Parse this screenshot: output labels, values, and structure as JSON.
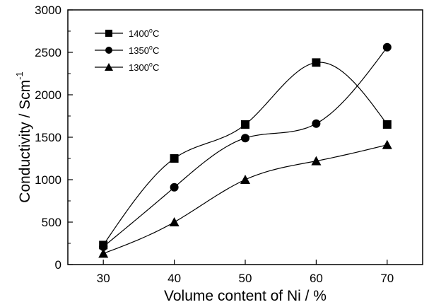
{
  "chart_data": {
    "type": "scatter",
    "xlabel": "Volume content of Ni / %",
    "ylabel": {
      "main": "Conductivity / Scm",
      "sup": "-1"
    },
    "xlim": [
      25,
      75
    ],
    "ylim": [
      0,
      3000
    ],
    "xticks": [
      30,
      40,
      50,
      60,
      70
    ],
    "yticks": [
      0,
      500,
      1000,
      1500,
      2000,
      2500,
      3000
    ],
    "grid": false,
    "legend_position": "top-left",
    "series": [
      {
        "name": {
          "main": "1400",
          "sup": "o",
          "unit": "C"
        },
        "marker": "square",
        "x": [
          30,
          40,
          50,
          60,
          70
        ],
        "y": [
          230,
          1250,
          1650,
          2380,
          1650
        ]
      },
      {
        "name": {
          "main": "1350",
          "sup": "o",
          "unit": "C"
        },
        "marker": "circle",
        "x": [
          30,
          40,
          50,
          60,
          70
        ],
        "y": [
          210,
          910,
          1490,
          1660,
          2560
        ]
      },
      {
        "name": {
          "main": "1300",
          "sup": "o",
          "unit": "C"
        },
        "marker": "triangle",
        "x": [
          30,
          40,
          50,
          60,
          70
        ],
        "y": [
          130,
          500,
          1000,
          1220,
          1410
        ]
      }
    ]
  }
}
